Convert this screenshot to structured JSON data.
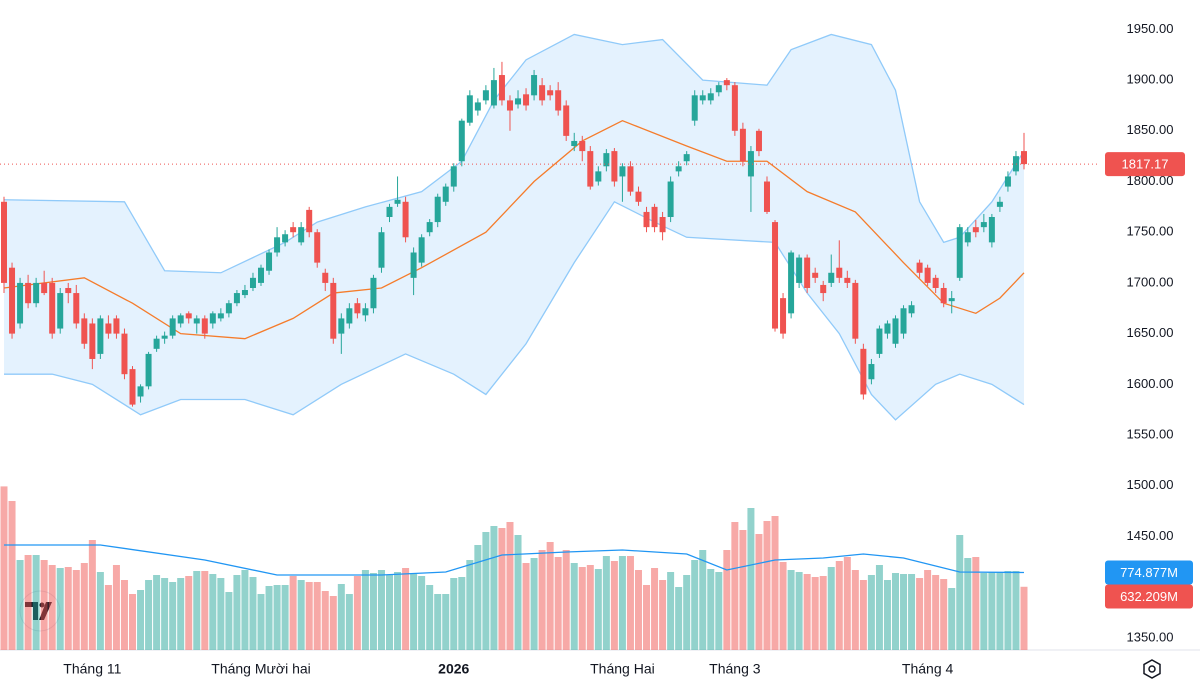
{
  "chart_data": {
    "type": "candlestick",
    "categories": [
      null,
      null,
      null,
      null,
      null,
      null,
      null,
      null,
      null,
      null,
      null,
      "Tháng 11",
      null,
      null,
      null,
      null,
      null,
      null,
      null,
      null,
      null,
      null,
      null,
      null,
      null,
      null,
      null,
      null,
      null,
      null,
      null,
      null,
      "Tháng Mười hai",
      null,
      null,
      null,
      null,
      null,
      null,
      null,
      null,
      null,
      null,
      null,
      null,
      null,
      null,
      null,
      null,
      null,
      null,
      null,
      null,
      null,
      null,
      null,
      "2026",
      null,
      null,
      null,
      null,
      null,
      null,
      null,
      null,
      null,
      null,
      null,
      null,
      null,
      null,
      null,
      null,
      null,
      null,
      null,
      null,
      "Tháng Hai",
      null,
      null,
      null,
      null,
      null,
      null,
      null,
      null,
      null,
      null,
      null,
      null,
      null,
      "Tháng 3",
      null,
      null,
      null,
      null,
      null,
      null,
      null,
      null,
      null,
      null,
      null,
      null,
      null,
      null,
      null,
      null,
      null,
      null,
      null,
      null,
      null,
      null,
      null,
      "Tháng 4",
      null,
      null,
      null,
      null,
      null,
      null,
      null,
      null,
      null,
      null,
      null,
      null
    ],
    "ohlc": [
      [
        1780,
        1785,
        1690,
        1700
      ],
      [
        1715,
        1720,
        1645,
        1650
      ],
      [
        1660,
        1705,
        1655,
        1700
      ],
      [
        1700,
        1708,
        1675,
        1680
      ],
      [
        1680,
        1705,
        1676,
        1700
      ],
      [
        1700,
        1712,
        1688,
        1690
      ],
      [
        1700,
        1705,
        1645,
        1650
      ],
      [
        1655,
        1695,
        1650,
        1690
      ],
      [
        1695,
        1700,
        1680,
        1690
      ],
      [
        1690,
        1698,
        1655,
        1660
      ],
      [
        1665,
        1670,
        1635,
        1640
      ],
      [
        1660,
        1665,
        1615,
        1625
      ],
      [
        1630,
        1668,
        1625,
        1665
      ],
      [
        1660,
        1668,
        1645,
        1650
      ],
      [
        1665,
        1668,
        1645,
        1650
      ],
      [
        1650,
        1655,
        1605,
        1610
      ],
      [
        1615,
        1618,
        1578,
        1580
      ],
      [
        1588,
        1600,
        1582,
        1598
      ],
      [
        1598,
        1632,
        1595,
        1630
      ],
      [
        1635,
        1648,
        1632,
        1645
      ],
      [
        1645,
        1652,
        1640,
        1648
      ],
      [
        1648,
        1668,
        1645,
        1665
      ],
      [
        1660,
        1670,
        1656,
        1668
      ],
      [
        1670,
        1672,
        1660,
        1665
      ],
      [
        1660,
        1668,
        1650,
        1665
      ],
      [
        1665,
        1668,
        1645,
        1650
      ],
      [
        1660,
        1672,
        1655,
        1670
      ],
      [
        1665,
        1675,
        1662,
        1670
      ],
      [
        1670,
        1683,
        1666,
        1680
      ],
      [
        1680,
        1693,
        1677,
        1690
      ],
      [
        1688,
        1698,
        1685,
        1693
      ],
      [
        1695,
        1710,
        1692,
        1705
      ],
      [
        1700,
        1718,
        1697,
        1715
      ],
      [
        1712,
        1733,
        1708,
        1730
      ],
      [
        1730,
        1755,
        1726,
        1745
      ],
      [
        1740,
        1752,
        1736,
        1748
      ],
      [
        1755,
        1760,
        1745,
        1750
      ],
      [
        1740,
        1760,
        1737,
        1755
      ],
      [
        1772,
        1775,
        1745,
        1750
      ],
      [
        1750,
        1753,
        1715,
        1720
      ],
      [
        1710,
        1714,
        1692,
        1700
      ],
      [
        1700,
        1705,
        1640,
        1645
      ],
      [
        1650,
        1670,
        1630,
        1665
      ],
      [
        1660,
        1680,
        1655,
        1675
      ],
      [
        1680,
        1685,
        1665,
        1670
      ],
      [
        1668,
        1680,
        1662,
        1675
      ],
      [
        1675,
        1708,
        1670,
        1705
      ],
      [
        1715,
        1755,
        1710,
        1750
      ],
      [
        1765,
        1778,
        1760,
        1775
      ],
      [
        1778,
        1805,
        1775,
        1782
      ],
      [
        1780,
        1785,
        1740,
        1745
      ],
      [
        1705,
        1735,
        1688,
        1730
      ],
      [
        1720,
        1748,
        1716,
        1745
      ],
      [
        1750,
        1763,
        1746,
        1760
      ],
      [
        1760,
        1788,
        1755,
        1785
      ],
      [
        1780,
        1798,
        1776,
        1795
      ],
      [
        1795,
        1818,
        1790,
        1815
      ],
      [
        1820,
        1862,
        1815,
        1860
      ],
      [
        1858,
        1890,
        1855,
        1885
      ],
      [
        1870,
        1882,
        1865,
        1878
      ],
      [
        1880,
        1895,
        1876,
        1890
      ],
      [
        1875,
        1912,
        1872,
        1900
      ],
      [
        1905,
        1918,
        1875,
        1880
      ],
      [
        1880,
        1885,
        1850,
        1870
      ],
      [
        1876,
        1890,
        1872,
        1882
      ],
      [
        1886,
        1892,
        1870,
        1875
      ],
      [
        1885,
        1910,
        1880,
        1905
      ],
      [
        1895,
        1902,
        1875,
        1880
      ],
      [
        1890,
        1895,
        1880,
        1885
      ],
      [
        1890,
        1898,
        1865,
        1870
      ],
      [
        1875,
        1880,
        1840,
        1845
      ],
      [
        1835,
        1848,
        1830,
        1840
      ],
      [
        1840,
        1845,
        1820,
        1830
      ],
      [
        1830,
        1835,
        1792,
        1795
      ],
      [
        1800,
        1815,
        1796,
        1810
      ],
      [
        1815,
        1832,
        1810,
        1828
      ],
      [
        1830,
        1833,
        1795,
        1800
      ],
      [
        1805,
        1818,
        1780,
        1815
      ],
      [
        1815,
        1820,
        1786,
        1790
      ],
      [
        1790,
        1795,
        1776,
        1780
      ],
      [
        1770,
        1775,
        1750,
        1755
      ],
      [
        1775,
        1778,
        1750,
        1755
      ],
      [
        1765,
        1770,
        1742,
        1750
      ],
      [
        1765,
        1805,
        1760,
        1800
      ],
      [
        1810,
        1820,
        1805,
        1815
      ],
      [
        1820,
        1830,
        1816,
        1827
      ],
      [
        1860,
        1890,
        1855,
        1885
      ],
      [
        1880,
        1890,
        1876,
        1885
      ],
      [
        1880,
        1892,
        1876,
        1887
      ],
      [
        1888,
        1898,
        1884,
        1895
      ],
      [
        1900,
        1902,
        1890,
        1895
      ],
      [
        1895,
        1898,
        1845,
        1850
      ],
      [
        1852,
        1858,
        1815,
        1820
      ],
      [
        1805,
        1835,
        1770,
        1830
      ],
      [
        1850,
        1852,
        1825,
        1830
      ],
      [
        1800,
        1805,
        1768,
        1770
      ],
      [
        1760,
        1762,
        1652,
        1655
      ],
      [
        1685,
        1690,
        1645,
        1650
      ],
      [
        1670,
        1732,
        1665,
        1730
      ],
      [
        1700,
        1728,
        1695,
        1725
      ],
      [
        1725,
        1728,
        1690,
        1695
      ],
      [
        1710,
        1715,
        1700,
        1705
      ],
      [
        1698,
        1702,
        1682,
        1690
      ],
      [
        1700,
        1728,
        1696,
        1710
      ],
      [
        1715,
        1742,
        1700,
        1705
      ],
      [
        1705,
        1712,
        1695,
        1700
      ],
      [
        1700,
        1703,
        1640,
        1645
      ],
      [
        1635,
        1640,
        1585,
        1590
      ],
      [
        1605,
        1625,
        1600,
        1620
      ],
      [
        1630,
        1658,
        1626,
        1655
      ],
      [
        1650,
        1663,
        1645,
        1660
      ],
      [
        1640,
        1668,
        1636,
        1665
      ],
      [
        1650,
        1678,
        1645,
        1675
      ],
      [
        1670,
        1682,
        1666,
        1678
      ],
      [
        1720,
        1723,
        1705,
        1710
      ],
      [
        1715,
        1718,
        1697,
        1700
      ],
      [
        1705,
        1708,
        1690,
        1695
      ],
      [
        1695,
        1700,
        1676,
        1680
      ],
      [
        1682,
        1692,
        1670,
        1685
      ],
      [
        1705,
        1758,
        1702,
        1755
      ],
      [
        1740,
        1755,
        1736,
        1750
      ],
      [
        1755,
        1762,
        1745,
        1750
      ],
      [
        1755,
        1768,
        1750,
        1760
      ],
      [
        1740,
        1768,
        1735,
        1765
      ],
      [
        1775,
        1785,
        1770,
        1780
      ],
      [
        1795,
        1810,
        1790,
        1805
      ],
      [
        1810,
        1830,
        1806,
        1825
      ],
      [
        1830,
        1848,
        1812,
        1817.17
      ]
    ],
    "up_color": "#26a69a",
    "down_color": "#ef5350",
    "bollinger": {
      "upper": {
        "x": [
          0,
          15,
          20,
          27,
          35,
          39,
          45,
          52,
          57,
          61,
          65,
          71,
          77,
          82,
          87,
          95,
          98,
          103,
          108,
          111,
          114,
          117,
          119,
          123,
          127
        ],
        "values": [
          1782,
          1780,
          1712,
          1710,
          1740,
          1760,
          1775,
          1790,
          1820,
          1880,
          1920,
          1945,
          1935,
          1940,
          1900,
          1895,
          1930,
          1945,
          1935,
          1890,
          1780,
          1740,
          1745,
          1780,
          1830
        ]
      },
      "middle": {
        "x": [
          0,
          10,
          16,
          22,
          30,
          36,
          41,
          47,
          52,
          60,
          66,
          72,
          77,
          85,
          90,
          95,
          100,
          106,
          112,
          117,
          121,
          124,
          127
        ],
        "values": [
          1695,
          1705,
          1680,
          1650,
          1645,
          1665,
          1690,
          1695,
          1715,
          1750,
          1800,
          1840,
          1860,
          1835,
          1820,
          1820,
          1790,
          1770,
          1720,
          1680,
          1670,
          1685,
          1710
        ]
      },
      "lower": {
        "x": [
          0,
          6,
          11,
          17,
          22,
          30,
          36,
          42,
          50,
          56,
          60,
          65,
          71,
          76,
          81,
          85,
          96,
          100,
          104,
          108,
          111,
          116,
          119,
          123,
          127
        ],
        "values": [
          1610,
          1610,
          1600,
          1570,
          1585,
          1585,
          1570,
          1600,
          1630,
          1610,
          1590,
          1640,
          1720,
          1780,
          1760,
          1745,
          1740,
          1690,
          1650,
          1590,
          1565,
          1600,
          1610,
          1600,
          1580
        ]
      },
      "band_color": "#90caf9",
      "fill_color": "#2196f3",
      "middle_color": "#f57c2b"
    },
    "volume": {
      "values": [
        1636,
        1490,
        900,
        950,
        950,
        900,
        850,
        820,
        830,
        800,
        870,
        1100,
        780,
        650,
        850,
        700,
        560,
        600,
        700,
        750,
        720,
        680,
        720,
        740,
        790,
        790,
        760,
        720,
        580,
        750,
        800,
        730,
        560,
        640,
        650,
        650,
        740,
        700,
        680,
        680,
        590,
        540,
        660,
        560,
        740,
        800,
        770,
        800,
        750,
        780,
        820,
        760,
        740,
        650,
        560,
        560,
        720,
        730,
        900,
        1050,
        1180,
        1240,
        1220,
        1280,
        1150,
        870,
        920,
        1000,
        1080,
        930,
        1000,
        870,
        830,
        850,
        810,
        940,
        890,
        940,
        940,
        800,
        650,
        820,
        700,
        780,
        630,
        750,
        900,
        1000,
        810,
        780,
        1000,
        1280,
        1200,
        1420,
        1160,
        1290,
        1340,
        880,
        800,
        780,
        760,
        730,
        740,
        830,
        890,
        930,
        800,
        700,
        750,
        850,
        700,
        770,
        760,
        760,
        720,
        800,
        750,
        710,
        620,
        1150,
        920,
        930,
        770,
        780,
        780,
        790,
        790,
        632.209
      ],
      "last_label": "632.209M"
    },
    "volume_ma": {
      "x": [
        0,
        12,
        25,
        34,
        47,
        55,
        62,
        70,
        77,
        85,
        90,
        96,
        102,
        107,
        112,
        119,
        127
      ],
      "values": [
        1050,
        1050,
        900,
        750,
        750,
        780,
        950,
        980,
        1000,
        960,
        800,
        900,
        920,
        960,
        920,
        780,
        774.877
      ],
      "last_label": "774.877M",
      "color": "#2196f3"
    },
    "ylim": [
      1338,
      1979
    ],
    "yticks": [
      {
        "value": 1350,
        "label": "1350.00"
      },
      {
        "value": 1450,
        "label": "1450.00"
      },
      {
        "value": 1500,
        "label": "1500.00"
      },
      {
        "value": 1550,
        "label": "1550.00"
      },
      {
        "value": 1600,
        "label": "1600.00"
      },
      {
        "value": 1650,
        "label": "1650.00"
      },
      {
        "value": 1700,
        "label": "1700.00"
      },
      {
        "value": 1750,
        "label": "1750.00"
      },
      {
        "value": 1800,
        "label": "1800.00"
      },
      {
        "value": 1850,
        "label": "1850.00"
      },
      {
        "value": 1900,
        "label": "1900.00"
      },
      {
        "value": 1950,
        "label": "1950.00"
      }
    ]
  }
}
